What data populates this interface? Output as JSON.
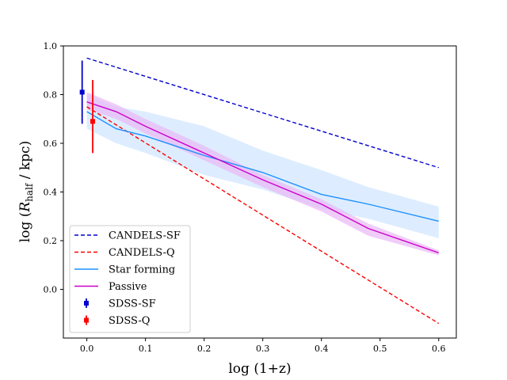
{
  "chart_data": {
    "type": "line",
    "xlabel": "log (1+z)",
    "ylabel": "log (R_half / kpc)",
    "ylabel_main": "log (",
    "ylabel_sym": "R",
    "ylabel_sub": "half",
    "ylabel_tail": " / kpc)",
    "xlim": [
      -0.04,
      0.63
    ],
    "ylim": [
      -0.2,
      1.0
    ],
    "x_ticks": [
      0.0,
      0.1,
      0.2,
      0.3,
      0.4,
      0.5,
      0.6
    ],
    "x_tick_labels": [
      "0.0",
      "0.1",
      "0.2",
      "0.3",
      "0.4",
      "0.5",
      "0.6"
    ],
    "y_ticks": [
      0.0,
      0.2,
      0.4,
      0.6,
      0.8,
      1.0
    ],
    "y_tick_labels": [
      "0.0",
      "0.2",
      "0.4",
      "0.6",
      "0.8",
      "1.0"
    ],
    "grid": false,
    "legend_position": "lower-left",
    "series": [
      {
        "name": "CANDELS-SF",
        "style": "dashed",
        "color": "#0000cc",
        "x": [
          0.0,
          0.6
        ],
        "y": [
          0.95,
          0.5
        ]
      },
      {
        "name": "CANDELS-Q",
        "style": "dashed",
        "color": "#ff0000",
        "x": [
          0.0,
          0.6
        ],
        "y": [
          0.75,
          -0.14
        ]
      },
      {
        "name": "Star forming",
        "style": "solid",
        "color": "#1e90ff",
        "band_color": "#cfe6ff",
        "x": [
          0.0,
          0.05,
          0.1,
          0.2,
          0.3,
          0.4,
          0.48,
          0.6
        ],
        "y": [
          0.73,
          0.66,
          0.63,
          0.55,
          0.48,
          0.39,
          0.35,
          0.28
        ],
        "y_low": [
          0.66,
          0.6,
          0.56,
          0.47,
          0.41,
          0.33,
          0.29,
          0.21
        ],
        "y_high": [
          0.8,
          0.75,
          0.73,
          0.67,
          0.57,
          0.49,
          0.42,
          0.34
        ]
      },
      {
        "name": "Passive",
        "style": "solid",
        "color": "#cc00cc",
        "band_color": "#e9b8f5",
        "x": [
          0.0,
          0.05,
          0.1,
          0.2,
          0.3,
          0.4,
          0.48,
          0.6
        ],
        "y": [
          0.77,
          0.73,
          0.67,
          0.56,
          0.45,
          0.35,
          0.25,
          0.15
        ],
        "y_low": [
          0.74,
          0.7,
          0.64,
          0.53,
          0.42,
          0.32,
          0.22,
          0.14
        ],
        "y_high": [
          0.81,
          0.76,
          0.7,
          0.59,
          0.47,
          0.37,
          0.27,
          0.16
        ]
      }
    ],
    "points": [
      {
        "name": "SDSS-SF",
        "color": "#0000cc",
        "x": -0.008,
        "y": 0.81,
        "y_err_low": 0.68,
        "y_err_high": 0.94
      },
      {
        "name": "SDSS-Q",
        "color": "#ff0000",
        "x": 0.01,
        "y": 0.69,
        "y_err_low": 0.56,
        "y_err_high": 0.86
      }
    ]
  }
}
